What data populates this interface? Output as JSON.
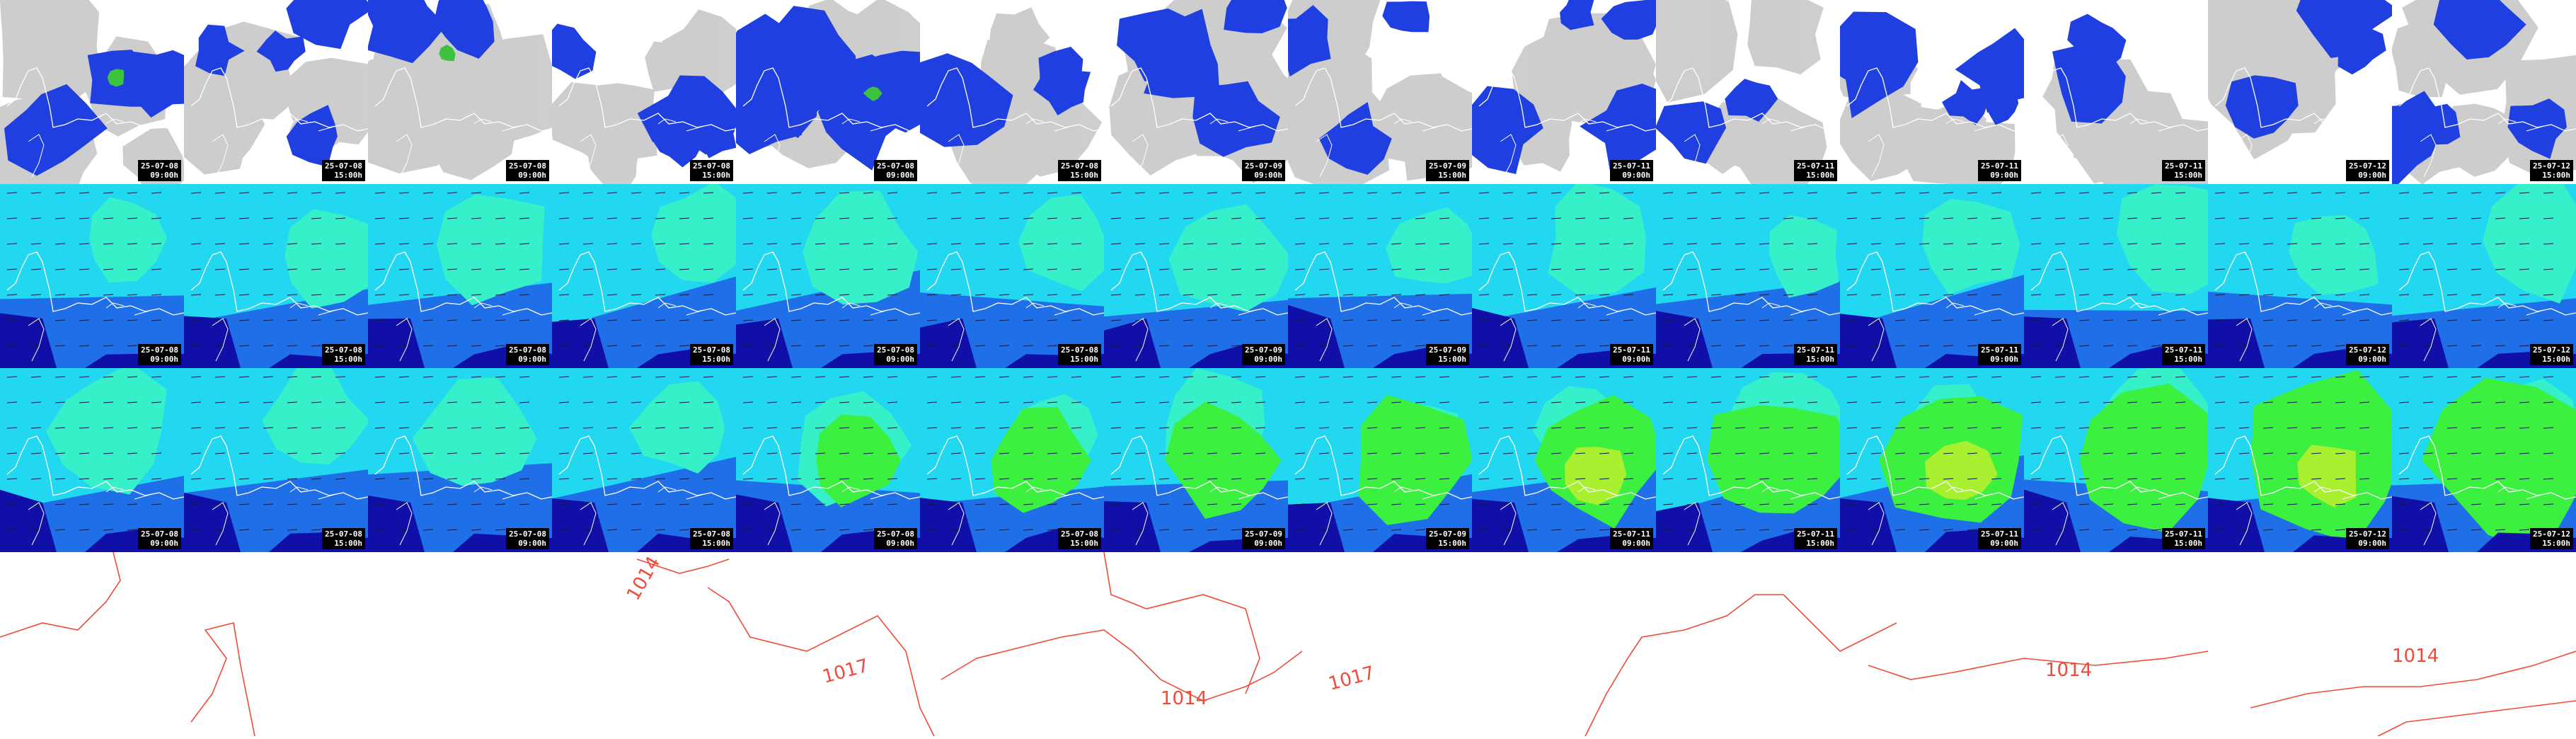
{
  "rows": [
    {
      "id": "precip",
      "tiles": [
        {
          "date": "25-07-08",
          "time": "09:00h"
        },
        {
          "date": "25-07-08",
          "time": "15:00h"
        },
        {
          "date": "25-07-08",
          "time": "09:00h"
        },
        {
          "date": "25-07-08",
          "time": "15:00h"
        },
        {
          "date": "25-07-08",
          "time": "09:00h"
        },
        {
          "date": "25-07-08",
          "time": "15:00h"
        },
        {
          "date": "25-07-09",
          "time": "09:00h"
        },
        {
          "date": "25-07-09",
          "time": "15:00h"
        },
        {
          "date": "25-07-11",
          "time": "09:00h"
        },
        {
          "date": "25-07-11",
          "time": "15:00h"
        },
        {
          "date": "25-07-11",
          "time": "09:00h"
        },
        {
          "date": "25-07-11",
          "time": "15:00h"
        },
        {
          "date": "25-07-12",
          "time": "09:00h"
        },
        {
          "date": "25-07-12",
          "time": "15:00h"
        }
      ]
    },
    {
      "id": "wind-low",
      "tiles": [
        {
          "date": "25-07-08",
          "time": "09:00h"
        },
        {
          "date": "25-07-08",
          "time": "15:00h"
        },
        {
          "date": "25-07-08",
          "time": "09:00h"
        },
        {
          "date": "25-07-08",
          "time": "15:00h"
        },
        {
          "date": "25-07-08",
          "time": "09:00h"
        },
        {
          "date": "25-07-08",
          "time": "15:00h"
        },
        {
          "date": "25-07-09",
          "time": "09:00h"
        },
        {
          "date": "25-07-09",
          "time": "15:00h"
        },
        {
          "date": "25-07-11",
          "time": "09:00h"
        },
        {
          "date": "25-07-11",
          "time": "15:00h"
        },
        {
          "date": "25-07-11",
          "time": "09:00h"
        },
        {
          "date": "25-07-11",
          "time": "15:00h"
        },
        {
          "date": "25-07-12",
          "time": "09:00h"
        },
        {
          "date": "25-07-12",
          "time": "15:00h"
        }
      ]
    },
    {
      "id": "wind-high",
      "tiles": [
        {
          "date": "25-07-08",
          "time": "09:00h"
        },
        {
          "date": "25-07-08",
          "time": "15:00h"
        },
        {
          "date": "25-07-08",
          "time": "09:00h"
        },
        {
          "date": "25-07-08",
          "time": "15:00h"
        },
        {
          "date": "25-07-08",
          "time": "09:00h"
        },
        {
          "date": "25-07-08",
          "time": "15:00h"
        },
        {
          "date": "25-07-09",
          "time": "09:00h"
        },
        {
          "date": "25-07-09",
          "time": "15:00h"
        },
        {
          "date": "25-07-11",
          "time": "09:00h"
        },
        {
          "date": "25-07-11",
          "time": "15:00h"
        },
        {
          "date": "25-07-11",
          "time": "09:00h"
        },
        {
          "date": "25-07-11",
          "time": "15:00h"
        },
        {
          "date": "25-07-12",
          "time": "09:00h"
        },
        {
          "date": "25-07-12",
          "time": "15:00h"
        }
      ]
    }
  ],
  "isobars": [
    "1014",
    "1017",
    "1014",
    "1017",
    "1014",
    "1014",
    "1014"
  ],
  "colors": {
    "precip_blue": "#1f3fe0",
    "precip_green": "#3cc23c",
    "cloud_grey": "#bdbdbd",
    "wind_dark": "#1010a8",
    "wind_mid": "#1f6fe8",
    "wind_cyan": "#22d8f0",
    "wind_aqua": "#35f0c8",
    "wind_green": "#3cf040",
    "wind_lime": "#a8f030",
    "coast": "#ffffff",
    "isobar": "#ef4b3a"
  }
}
